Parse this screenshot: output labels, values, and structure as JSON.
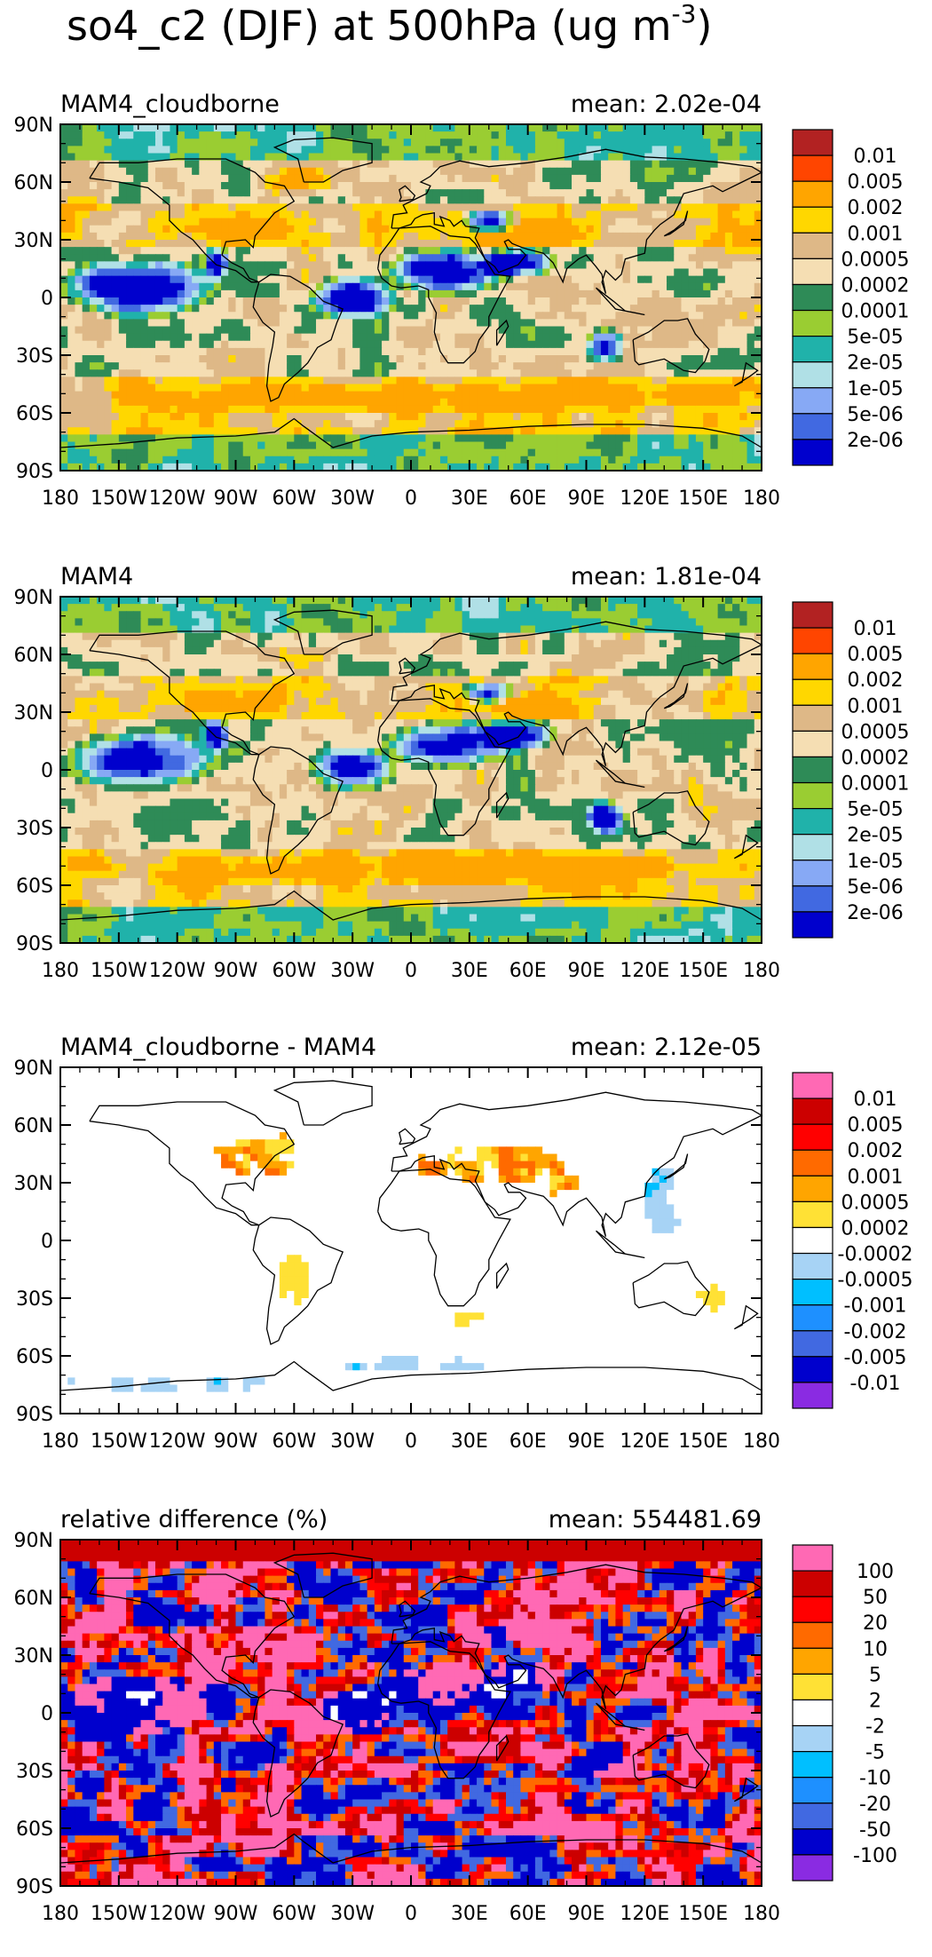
{
  "title": {
    "main": "so4_c2 (DJF) at 500hPa (ug m",
    "sup": "-3",
    "close": ")"
  },
  "axes": {
    "lat_labels": [
      "90N",
      "60N",
      "30N",
      "0",
      "30S",
      "60S",
      "90S"
    ],
    "lon_labels": [
      "180",
      "150W",
      "120W",
      "90W",
      "60W",
      "30W",
      "0",
      "30E",
      "60E",
      "90E",
      "120E",
      "150E",
      "180"
    ]
  },
  "panels": [
    {
      "name": "MAM4_cloudborne",
      "mean_text": "mean: 2.02e-04",
      "scheme": "conc",
      "legend_labels": [
        "0.01",
        "0.005",
        "0.002",
        "0.001",
        "0.0005",
        "0.0002",
        "0.0001",
        "5e-05",
        "2e-05",
        "1e-05",
        "5e-06",
        "2e-06"
      ],
      "legend_colors": [
        "#b22222",
        "#ff4500",
        "#ffa500",
        "#ffd700",
        "#deb887",
        "#f5deb3",
        "#2e8b57",
        "#9acd32",
        "#20b2aa",
        "#b0e0e6",
        "#87a9f5",
        "#4169e1",
        "#0000cd"
      ]
    },
    {
      "name": "MAM4",
      "mean_text": "mean: 1.81e-04",
      "scheme": "conc",
      "legend_labels": [
        "0.01",
        "0.005",
        "0.002",
        "0.001",
        "0.0005",
        "0.0002",
        "0.0001",
        "5e-05",
        "2e-05",
        "1e-05",
        "5e-06",
        "2e-06"
      ],
      "legend_colors": [
        "#b22222",
        "#ff4500",
        "#ffa500",
        "#ffd700",
        "#deb887",
        "#f5deb3",
        "#2e8b57",
        "#9acd32",
        "#20b2aa",
        "#b0e0e6",
        "#87a9f5",
        "#4169e1",
        "#0000cd"
      ]
    },
    {
      "name": "MAM4_cloudborne - MAM4",
      "mean_text": "mean: 2.12e-05",
      "scheme": "diff",
      "legend_labels": [
        "0.01",
        "0.005",
        "0.002",
        "0.001",
        "0.0005",
        "0.0002",
        "-0.0002",
        "-0.0005",
        "-0.001",
        "-0.002",
        "-0.005",
        "-0.01"
      ],
      "legend_colors": [
        "#ff69b4",
        "#cc0000",
        "#ff0000",
        "#ff6a00",
        "#ffa500",
        "#ffe135",
        "#ffffff",
        "#a7d3f5",
        "#00bfff",
        "#1e90ff",
        "#4169e1",
        "#0000cd",
        "#8a2be2"
      ]
    },
    {
      "name": "relative difference (%)",
      "mean_text": "mean: 554481.69",
      "scheme": "rel",
      "legend_labels": [
        "100",
        "50",
        "20",
        "10",
        "5",
        "2",
        "-2",
        "-5",
        "-10",
        "-20",
        "-50",
        "-100"
      ],
      "legend_colors": [
        "#ff69b4",
        "#cc0000",
        "#ff0000",
        "#ff6a00",
        "#ffa500",
        "#ffe135",
        "#ffffff",
        "#a7d3f5",
        "#00bfff",
        "#1e90ff",
        "#4169e1",
        "#0000cd",
        "#8a2be2"
      ]
    }
  ]
}
